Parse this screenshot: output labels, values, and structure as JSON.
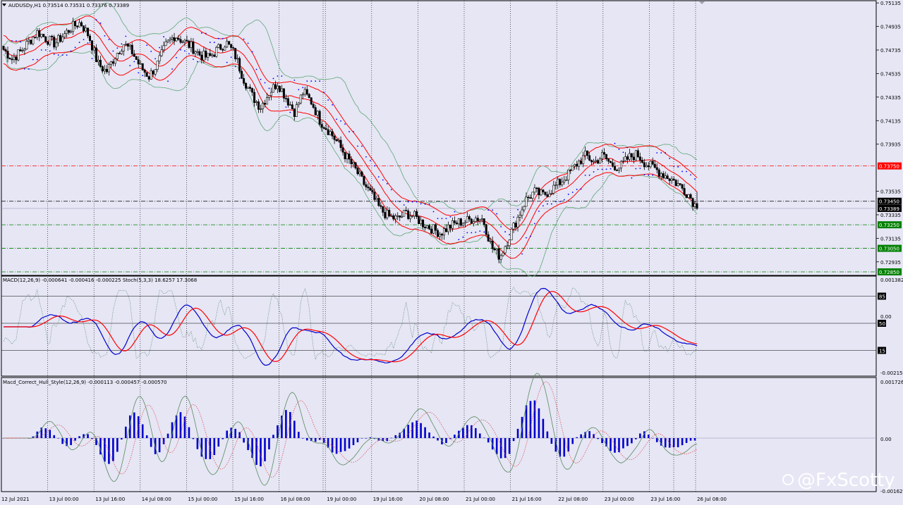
{
  "window": {
    "header": "AUDUSDy,H1  0.73514 0.73531 0.73376 0.73389"
  },
  "main_panel": {
    "price_ticks": [
      "0.75135",
      "0.74935",
      "0.74735",
      "0.74535",
      "0.74335",
      "0.74135",
      "0.73935",
      "0.73535",
      "0.73335",
      "0.73135",
      "0.72935"
    ],
    "price_axis": {
      "min": 0.7282,
      "max": 0.7516
    },
    "levels": [
      {
        "price": 0.7375,
        "label": "0.73750",
        "color": "#ff0000",
        "style": "dash-dot"
      },
      {
        "price": 0.7345,
        "label": "0.73450",
        "color": "#000000",
        "style": "dash-dot"
      },
      {
        "price": 0.73389,
        "label": "0.73389",
        "color": "#000000",
        "style": "current"
      },
      {
        "price": 0.7325,
        "label": "0.73250",
        "color": "#008000",
        "style": "dash-dot"
      },
      {
        "price": 0.7305,
        "label": "0.73050",
        "color": "#008000",
        "style": "dash-dot"
      },
      {
        "price": 0.7285,
        "label": "0.72850",
        "color": "#008000",
        "style": "dash-dot"
      }
    ]
  },
  "macd_panel": {
    "label": "MACD(12,26,9) -0.000641 -0.000416 -0.000225  Stoch(5,3,3) 18.6257 17.3068",
    "right_ticks": [
      "0.001382",
      "0.00",
      "-0.002151"
    ],
    "stoch_levels": [
      "85",
      "50",
      "15"
    ]
  },
  "hull_panel": {
    "label": "Macd_Correct_Hull_Style(12,26,9) -0.000113 -0.000457 -0.000570",
    "right_ticks": [
      "0.001726",
      "0.00",
      "-0.00162"
    ]
  },
  "time_axis": [
    "12 Jul 2021",
    "13 Jul 00:00",
    "13 Jul 16:00",
    "14 Jul 08:00",
    "15 Jul 00:00",
    "15 Jul 16:00",
    "16 Jul 08:00",
    "19 Jul 00:00",
    "19 Jul 16:00",
    "20 Jul 08:00",
    "21 Jul 00:00",
    "21 Jul 16:00",
    "22 Jul 08:00",
    "23 Jul 00:00",
    "23 Jul 16:00",
    "26 Jul 08:00"
  ],
  "watermark": "@FxScotty",
  "colors": {
    "background": "#e6e6f5",
    "bull_candle": "#ffffff",
    "bear_candle": "#000000",
    "envelope": "#ff0000",
    "bollinger": "#5fa873",
    "sar": "#0000ff",
    "macd_main": "#0000cc",
    "macd_signal": "#ff0000",
    "hist": "#0000cc"
  },
  "chart_data": {
    "type": "candlestick",
    "symbol": "AUDUSDy",
    "timeframe": "H1",
    "ohlc_last": {
      "open": 0.73514,
      "high": 0.73531,
      "low": 0.73376,
      "close": 0.73389
    },
    "price_path": [
      0.7474,
      0.7466,
      0.7472,
      0.7481,
      0.7489,
      0.7483,
      0.7479,
      0.7486,
      0.7493,
      0.7497,
      0.7485,
      0.7462,
      0.7455,
      0.7468,
      0.7479,
      0.7472,
      0.7459,
      0.7451,
      0.7462,
      0.7478,
      0.7486,
      0.7481,
      0.7476,
      0.7469,
      0.7467,
      0.7474,
      0.748,
      0.747,
      0.745,
      0.7435,
      0.7425,
      0.7437,
      0.7446,
      0.7433,
      0.7421,
      0.7438,
      0.7429,
      0.7413,
      0.7405,
      0.7395,
      0.7383,
      0.7373,
      0.7361,
      0.735,
      0.7338,
      0.7332,
      0.733,
      0.7335,
      0.7332,
      0.7326,
      0.7322,
      0.7318,
      0.7323,
      0.7327,
      0.7328,
      0.7331,
      0.733,
      0.7306,
      0.7298,
      0.7314,
      0.733,
      0.7346,
      0.7353,
      0.735,
      0.7355,
      0.7361,
      0.7368,
      0.7377,
      0.7384,
      0.7378,
      0.7384,
      0.7376,
      0.7374,
      0.7382,
      0.7385,
      0.7377,
      0.7373,
      0.7368,
      0.7364,
      0.7358,
      0.7351,
      0.7339
    ]
  }
}
